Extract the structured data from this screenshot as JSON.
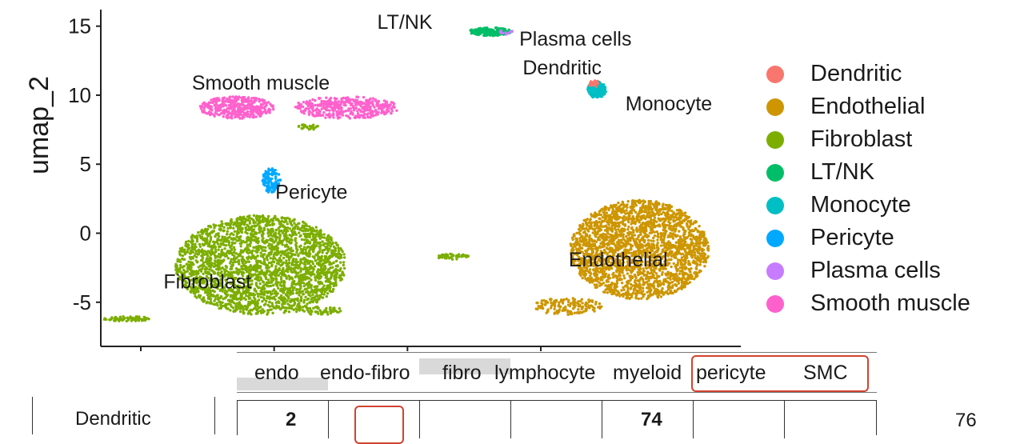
{
  "chart_data": {
    "type": "scatter",
    "xlabel": "",
    "ylabel": "umap_2",
    "xlim": [
      -9.0,
      15.0
    ],
    "ylim": [
      -8.2,
      16.2
    ],
    "x_ticks": [
      -7.5,
      -2.5,
      2.5,
      7.5
    ],
    "y_ticks": [
      -5,
      0,
      5,
      10,
      15
    ],
    "y_tick_labels": [
      "-5",
      "0",
      "5",
      "10",
      "15"
    ],
    "legend": {
      "position": "right",
      "entries": [
        {
          "name": "Dendritic",
          "color": "#F8766D"
        },
        {
          "name": "Endothelial",
          "color": "#CD9600"
        },
        {
          "name": "Fibroblast",
          "color": "#7CAE00"
        },
        {
          "name": "LT/NK",
          "color": "#00BE67"
        },
        {
          "name": "Monocyte",
          "color": "#00BFC4"
        },
        {
          "name": "Pericyte",
          "color": "#00A9FF"
        },
        {
          "name": "Plasma cells",
          "color": "#C77CFF"
        },
        {
          "name": "Smooth muscle",
          "color": "#FF61CC"
        }
      ]
    },
    "clusters": [
      {
        "name": "Fibroblast",
        "label": "Fibroblast",
        "cx": -3.0,
        "cy": -2.3,
        "rx": 3.2,
        "ry": 3.6,
        "n": 2600,
        "label_pos": [
          -5.0,
          -4.0
        ]
      },
      {
        "name": "Fibroblast",
        "label": "",
        "cx": -8.0,
        "cy": -6.2,
        "rx": 0.9,
        "ry": 0.18,
        "n": 70
      },
      {
        "name": "Fibroblast",
        "label": "",
        "cx": -0.8,
        "cy": -5.6,
        "rx": 0.9,
        "ry": 0.3,
        "n": 60
      },
      {
        "name": "Fibroblast",
        "label": "",
        "cx": 4.2,
        "cy": -1.7,
        "rx": 0.6,
        "ry": 0.2,
        "n": 50
      },
      {
        "name": "Fibroblast",
        "label": "",
        "cx": -1.2,
        "cy": 7.7,
        "rx": 0.4,
        "ry": 0.2,
        "n": 25
      },
      {
        "name": "Smooth muscle",
        "label": "Smooth muscle",
        "cx": -3.9,
        "cy": 9.1,
        "rx": 1.4,
        "ry": 0.8,
        "n": 380,
        "label_pos": [
          -3.0,
          10.4
        ]
      },
      {
        "name": "Smooth muscle",
        "label": "",
        "cx": 0.2,
        "cy": 9.1,
        "rx": 2.0,
        "ry": 0.8,
        "n": 420
      },
      {
        "name": "Pericyte",
        "label": "Pericyte",
        "cx": -2.6,
        "cy": 3.8,
        "rx": 0.35,
        "ry": 0.9,
        "n": 110,
        "label_pos": [
          -1.1,
          2.5
        ]
      },
      {
        "name": "Endothelial",
        "label": "Endothelial",
        "cx": 11.2,
        "cy": -1.2,
        "rx": 2.6,
        "ry": 3.6,
        "n": 2400,
        "label_pos": [
          10.4,
          -2.4
        ]
      },
      {
        "name": "Endothelial",
        "label": "",
        "cx": 8.5,
        "cy": -5.3,
        "rx": 1.3,
        "ry": 0.6,
        "n": 150
      },
      {
        "name": "LT/NK",
        "label": "LT/NK",
        "cx": 5.6,
        "cy": 14.6,
        "rx": 0.8,
        "ry": 0.3,
        "n": 180,
        "label_pos": [
          2.4,
          14.8
        ]
      },
      {
        "name": "Plasma cells",
        "label": "Plasma cells",
        "cx": 6.2,
        "cy": 14.6,
        "rx": 0.25,
        "ry": 0.2,
        "n": 10,
        "label_pos": [
          8.8,
          13.6
        ]
      },
      {
        "name": "Monocyte",
        "label": "Monocyte",
        "cx": 9.6,
        "cy": 10.4,
        "rx": 0.35,
        "ry": 0.6,
        "n": 160,
        "label_pos": [
          12.3,
          8.9
        ]
      },
      {
        "name": "Dendritic",
        "label": "Dendritic",
        "cx": 9.5,
        "cy": 10.8,
        "rx": 0.2,
        "ry": 0.3,
        "n": 20,
        "label_pos": [
          8.3,
          11.5
        ]
      }
    ]
  },
  "table": {
    "columns": [
      "endo",
      "endo-fibro",
      "fibro",
      "lymphocyte",
      "myeloid",
      "pericyte",
      "SMC"
    ],
    "row": {
      "label": "Dendritic",
      "cells": [
        "2",
        "",
        "",
        "",
        "74",
        "",
        ""
      ],
      "total": "76"
    }
  },
  "colors": {
    "highlight_box": "#d1432f",
    "header_bar": "#d9d9d9"
  }
}
